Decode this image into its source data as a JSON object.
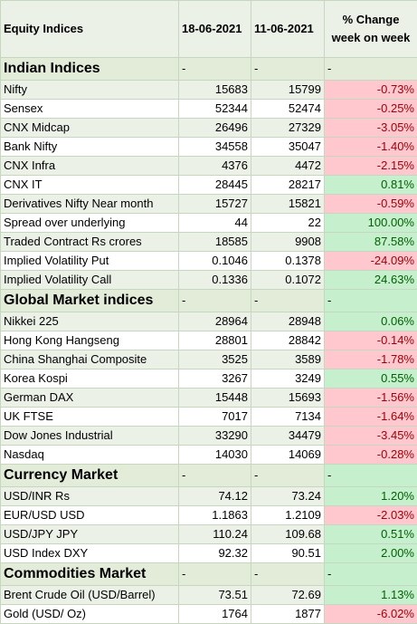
{
  "header": {
    "col1": "Equity Indices",
    "col2": "18-06-2021",
    "col3": "11-06-2021",
    "col4": "% Change week on week"
  },
  "sections": [
    {
      "title": "Indian Indices",
      "dash2": "-",
      "dash3": "-",
      "dash4": "-",
      "rows": [
        {
          "name": "Nifty",
          "v1": "15683",
          "v2": "15799",
          "chg": "-0.73%"
        },
        {
          "name": "Sensex",
          "v1": "52344",
          "v2": "52474",
          "chg": "-0.25%"
        },
        {
          "name": "CNX Midcap",
          "v1": "26496",
          "v2": "27329",
          "chg": "-3.05%"
        },
        {
          "name": "Bank Nifty",
          "v1": "34558",
          "v2": "35047",
          "chg": "-1.40%"
        },
        {
          "name": "CNX Infra",
          "v1": "4376",
          "v2": "4472",
          "chg": "-2.15%"
        },
        {
          "name": "CNX IT",
          "v1": "28445",
          "v2": "28217",
          "chg": "0.81%"
        },
        {
          "name": "Derivatives Nifty Near month",
          "v1": "15727",
          "v2": "15821",
          "chg": "-0.59%"
        },
        {
          "name": "Spread over underlying",
          "v1": "44",
          "v2": "22",
          "chg": "100.00%"
        },
        {
          "name": "Traded Contract Rs crores",
          "v1": "18585",
          "v2": "9908",
          "chg": "87.58%"
        },
        {
          "name": "Implied Volatility Put",
          "v1": "0.1046",
          "v2": "0.1378",
          "chg": "-24.09%"
        },
        {
          "name": "Implied Volatility Call",
          "v1": "0.1336",
          "v2": "0.1072",
          "chg": "24.63%"
        }
      ]
    },
    {
      "title": "Global Market indices",
      "dash2": "-",
      "dash3": "-",
      "dash4": "-",
      "rows": [
        {
          "name": "Nikkei 225",
          "v1": "28964",
          "v2": "28948",
          "chg": "0.06%"
        },
        {
          "name": "Hong Kong Hangseng",
          "v1": "28801",
          "v2": "28842",
          "chg": "-0.14%"
        },
        {
          "name": "China Shanghai Composite",
          "v1": "3525",
          "v2": "3589",
          "chg": "-1.78%"
        },
        {
          "name": "Korea Kospi",
          "v1": "3267",
          "v2": "3249",
          "chg": "0.55%"
        },
        {
          "name": "German DAX",
          "v1": "15448",
          "v2": "15693",
          "chg": "-1.56%"
        },
        {
          "name": "UK FTSE",
          "v1": "7017",
          "v2": "7134",
          "chg": "-1.64%"
        },
        {
          "name": "Dow Jones Industrial",
          "v1": "33290",
          "v2": "34479",
          "chg": "-3.45%"
        },
        {
          "name": "Nasdaq",
          "v1": "14030",
          "v2": "14069",
          "chg": "-0.28%"
        }
      ]
    },
    {
      "title": "Currency Market",
      "dash2": "-",
      "dash3": "-",
      "dash4": "-",
      "rows": [
        {
          "name": "USD/INR Rs",
          "v1": "74.12",
          "v2": "73.24",
          "chg": "1.20%"
        },
        {
          "name": "EUR/USD USD",
          "v1": "1.1863",
          "v2": "1.2109",
          "chg": "-2.03%"
        },
        {
          "name": "USD/JPY JPY",
          "v1": "110.24",
          "v2": "109.68",
          "chg": "0.51%"
        },
        {
          "name": "USD Index DXY",
          "v1": "92.32",
          "v2": "90.51",
          "chg": "2.00%"
        }
      ]
    },
    {
      "title": "Commodities Market",
      "dash2": "-",
      "dash3": "-",
      "dash4": "-",
      "rows": [
        {
          "name": "Brent Crude Oil (USD/Barrel)",
          "v1": "73.51",
          "v2": "72.69",
          "chg": "1.13%"
        },
        {
          "name": "Gold (USD/ Oz)",
          "v1": "1764",
          "v2": "1877",
          "chg": "-6.02%"
        }
      ]
    }
  ]
}
